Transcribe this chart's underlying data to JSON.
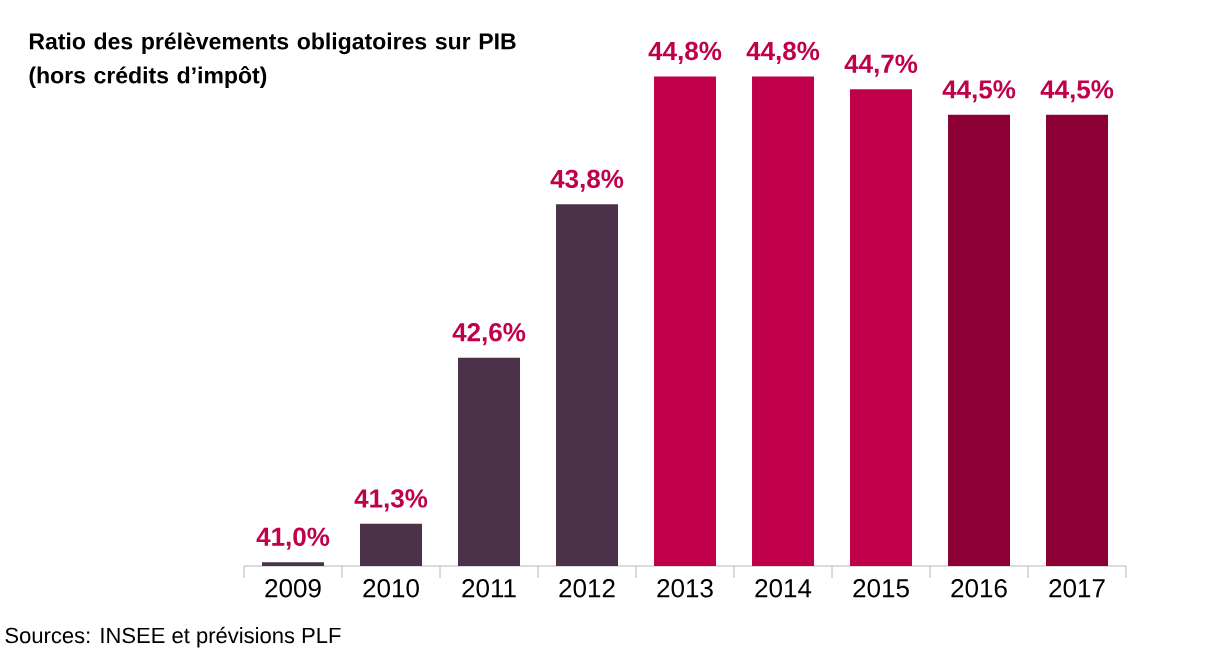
{
  "chart_data": {
    "type": "bar",
    "title": "Ratio des prélèvements obligatoires sur PIB (hors crédits d’impôt)",
    "categories": [
      "2009",
      "2010",
      "2011",
      "2012",
      "2013",
      "2014",
      "2015",
      "2016",
      "2017"
    ],
    "values": [
      41.0,
      41.3,
      42.6,
      43.8,
      44.8,
      44.8,
      44.7,
      44.5,
      44.5
    ],
    "value_labels": [
      "41,0%",
      "41,3%",
      "42,6%",
      "43,8%",
      "44,8%",
      "44,8%",
      "44,7%",
      "44,5%",
      "44,5%"
    ],
    "colors": [
      "#4b3248",
      "#4b3248",
      "#4b3248",
      "#4b3248",
      "#c0004a",
      "#c0004a",
      "#c0004a",
      "#8c0036",
      "#8c0036"
    ],
    "ylim": [
      40.97,
      44.85
    ],
    "annotations": [
      "Sources: INSEE et prévisions PLF"
    ]
  }
}
